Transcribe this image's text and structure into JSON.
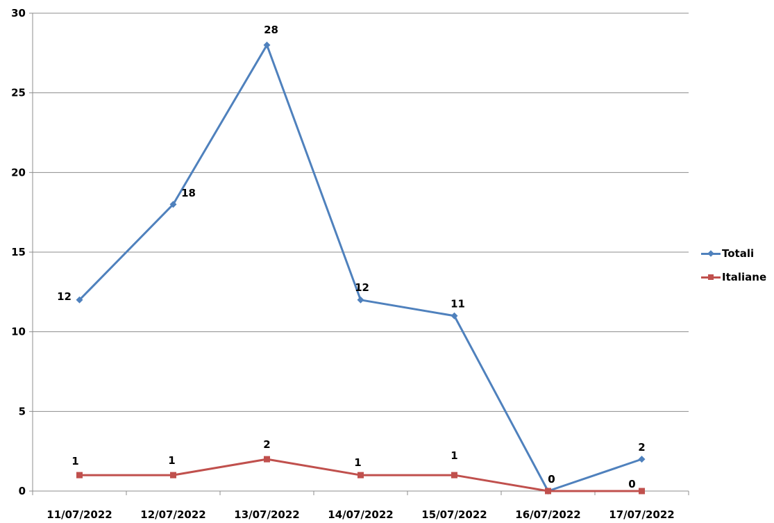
{
  "chart_data": {
    "type": "line",
    "title": "",
    "xlabel": "",
    "ylabel": "",
    "categories": [
      "11/07/2022",
      "12/07/2022",
      "13/07/2022",
      "14/07/2022",
      "15/07/2022",
      "16/07/2022",
      "17/07/2022"
    ],
    "ylim": [
      0,
      30
    ],
    "yticks": [
      0,
      5,
      10,
      15,
      20,
      25,
      30
    ],
    "grid": "horizontal",
    "legend_position": "right",
    "series": [
      {
        "name": "Totali",
        "values": [
          12,
          18,
          28,
          12,
          11,
          0,
          2
        ],
        "color": "#4f81bd",
        "marker": "diamond"
      },
      {
        "name": "Italiane",
        "values": [
          1,
          1,
          2,
          1,
          1,
          0,
          0
        ],
        "color": "#c0504d",
        "marker": "square"
      }
    ]
  }
}
